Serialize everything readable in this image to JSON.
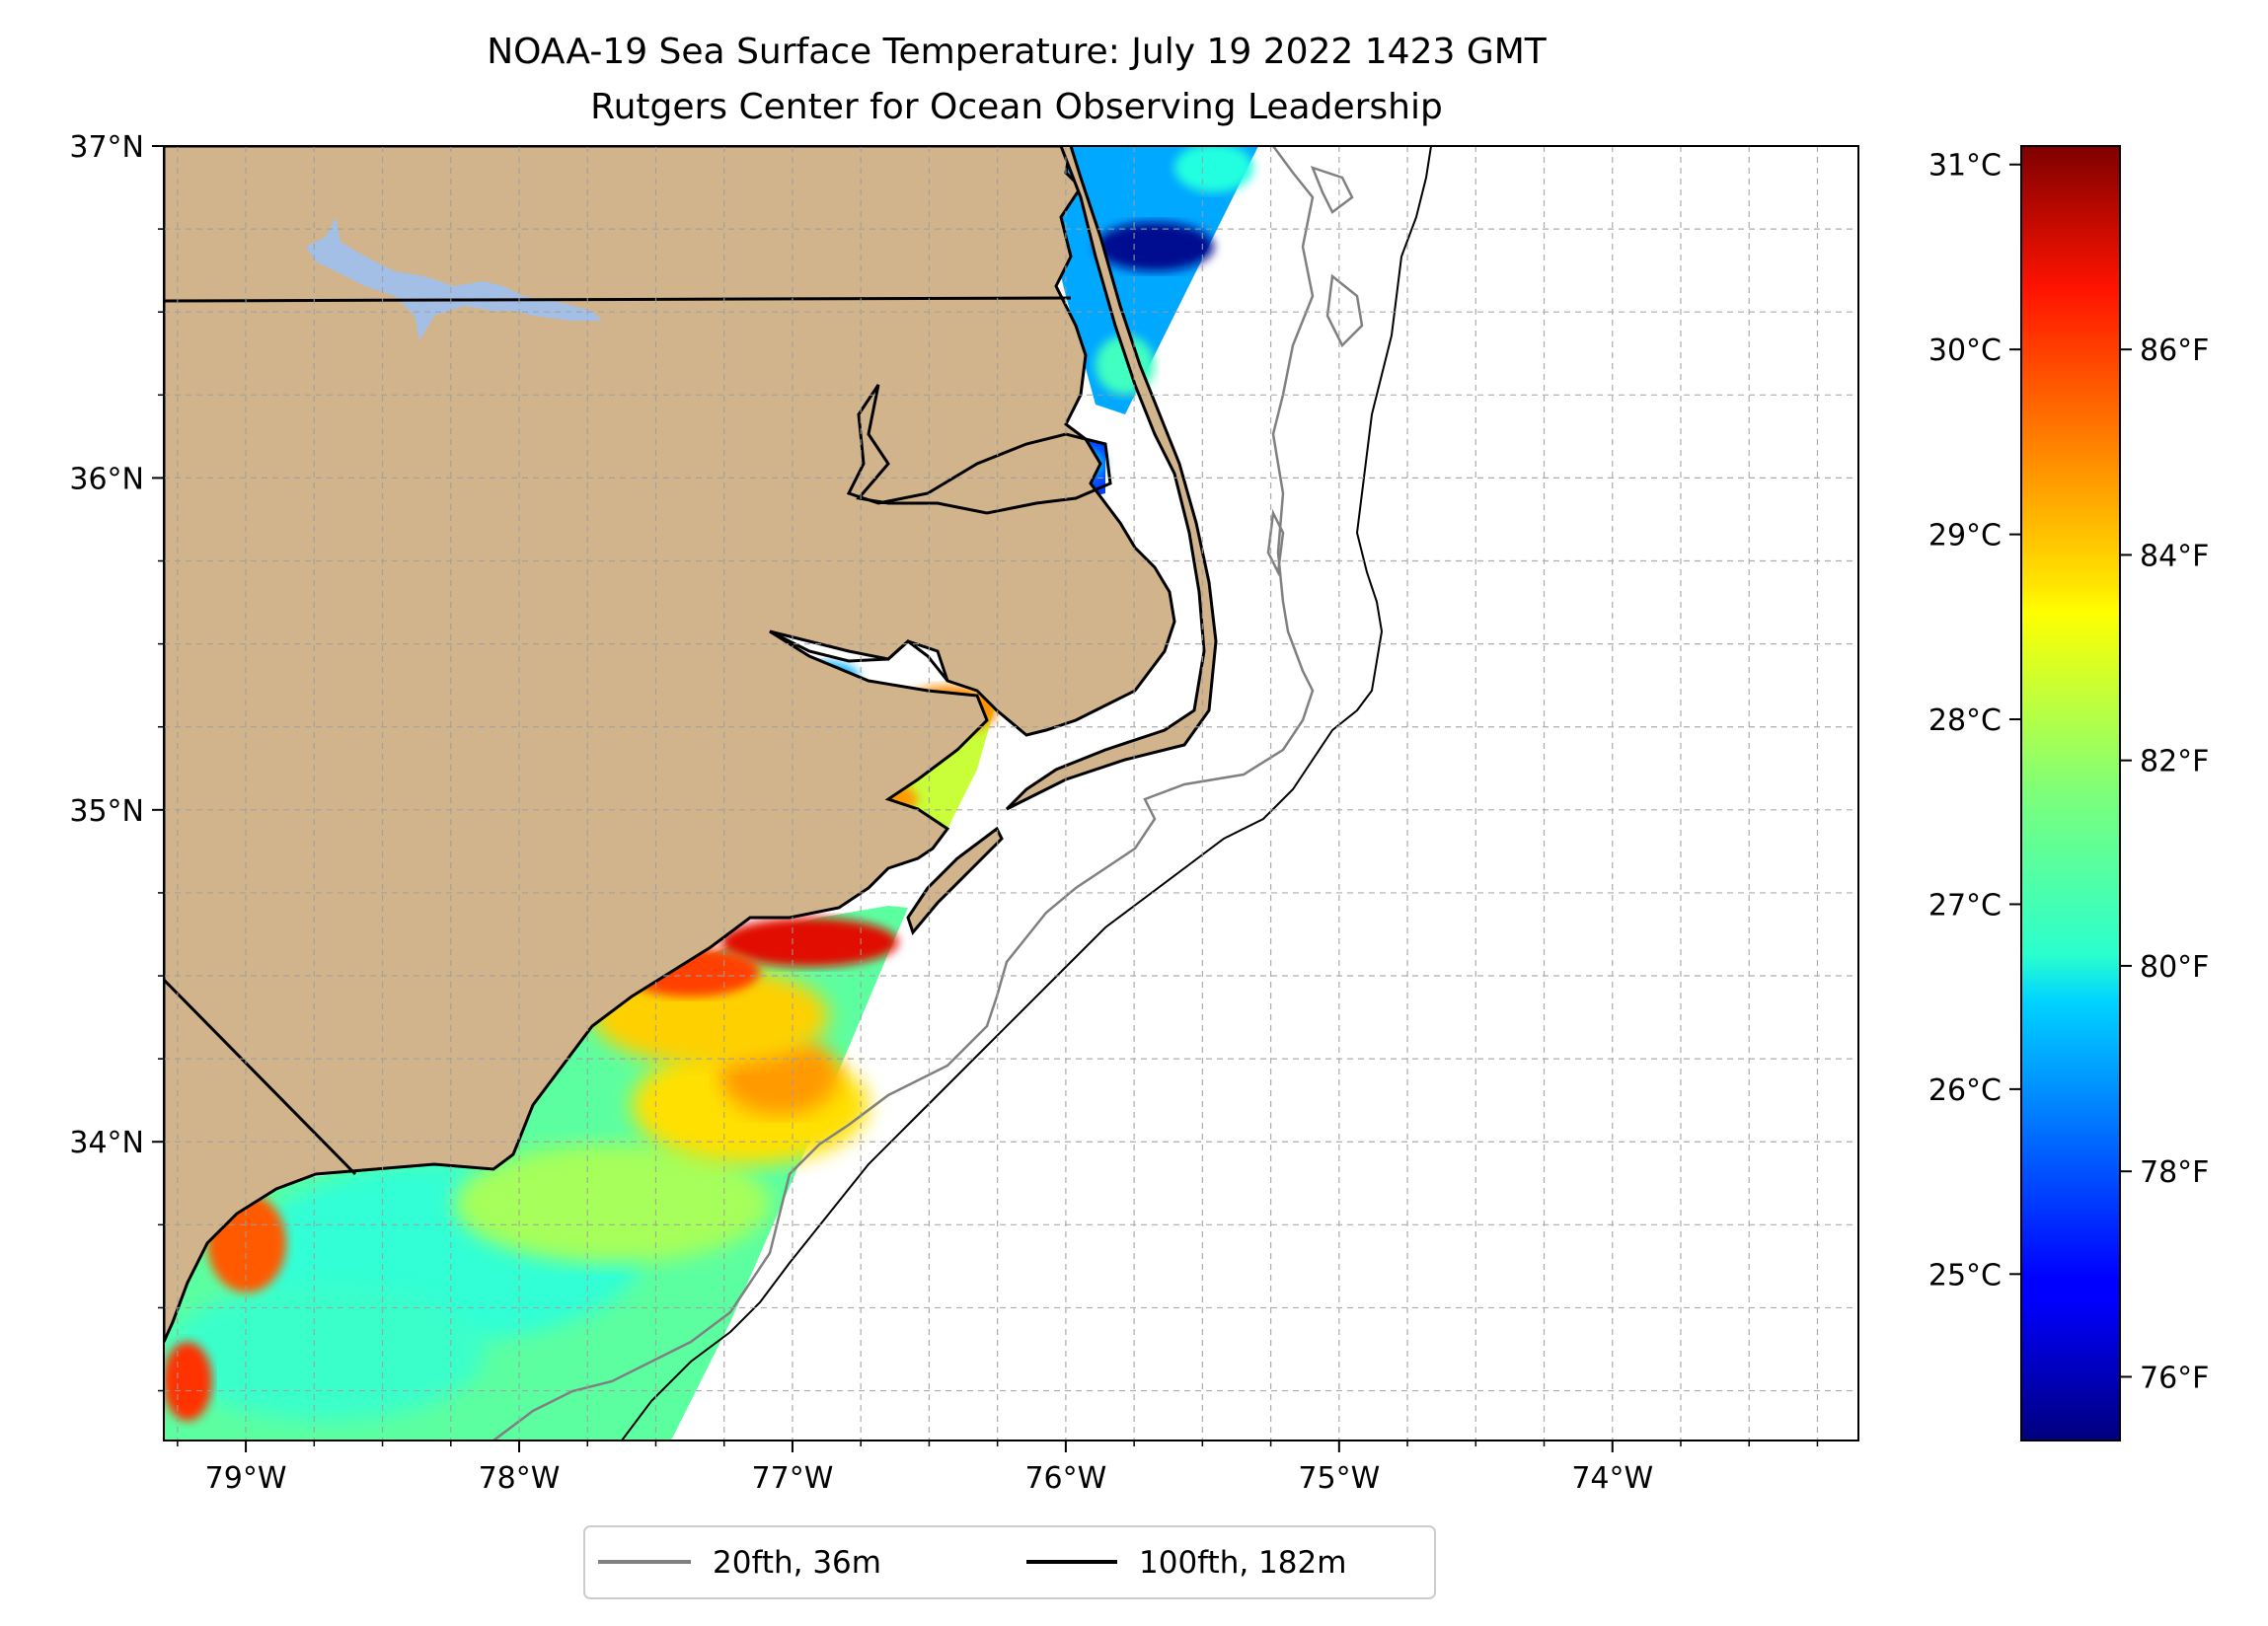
{
  "title": {
    "line1": "NOAA-19 Sea Surface Temperature: July 19 2022 1423 GMT",
    "line2": "Rutgers Center for Ocean Observing Leadership"
  },
  "map": {
    "lon_range": [
      -79.3,
      -73.1
    ],
    "lat_range": [
      33.1,
      37.0
    ],
    "lon_ticks": [
      {
        "value": -79,
        "label": "79°W"
      },
      {
        "value": -78,
        "label": "78°W"
      },
      {
        "value": -77,
        "label": "77°W"
      },
      {
        "value": -76,
        "label": "76°W"
      },
      {
        "value": -75,
        "label": "75°W"
      },
      {
        "value": -74,
        "label": "74°W"
      }
    ],
    "lat_ticks": [
      {
        "value": 37,
        "label": "37°N"
      },
      {
        "value": 36,
        "label": "36°N"
      },
      {
        "value": 35,
        "label": "35°N"
      },
      {
        "value": 34,
        "label": "34°N"
      }
    ],
    "gridlines": "dashed",
    "land_color": "#d2b48c",
    "lake_color": "#a3bfe6"
  },
  "colorbar": {
    "colormap": "jet",
    "celsius_ticks": [
      {
        "value": 31,
        "label": "31°C"
      },
      {
        "value": 30,
        "label": "30°C"
      },
      {
        "value": 29,
        "label": "29°C"
      },
      {
        "value": 28,
        "label": "28°C"
      },
      {
        "value": 27,
        "label": "27°C"
      },
      {
        "value": 26,
        "label": "26°C"
      },
      {
        "value": 25,
        "label": "25°C"
      }
    ],
    "fahrenheit_ticks": [
      {
        "value": 86,
        "label": "86°F"
      },
      {
        "value": 84,
        "label": "84°F"
      },
      {
        "value": 82,
        "label": "82°F"
      },
      {
        "value": 80,
        "label": "80°F"
      },
      {
        "value": 78,
        "label": "78°F"
      },
      {
        "value": 76,
        "label": "76°F"
      }
    ],
    "range_celsius": [
      24.1,
      31.1
    ]
  },
  "legend": {
    "placement": "bottom-center",
    "items": [
      {
        "label": "20fth, 36m",
        "color": "#808080"
      },
      {
        "label": "100fth, 182m",
        "color": "#000000"
      }
    ]
  }
}
